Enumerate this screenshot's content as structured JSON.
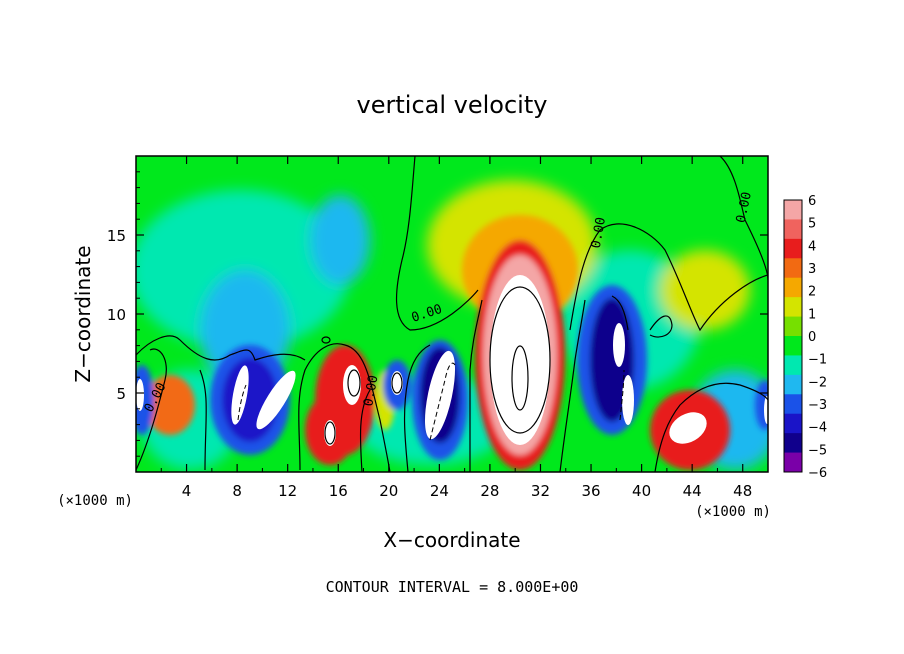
{
  "chart_data": {
    "type": "heatmap",
    "title": "vertical velocity",
    "xlabel": "X−coordinate",
    "ylabel": "Z−coordinate",
    "x_unit_left": "(×1000 m)",
    "x_unit_right": "(×1000 m)",
    "footer": "CONTOUR INTERVAL = 8.000E+00",
    "xlim": [
      0,
      50
    ],
    "ylim": [
      0,
      20
    ],
    "x_ticks": [
      4,
      8,
      12,
      16,
      20,
      24,
      28,
      32,
      36,
      40,
      44,
      48
    ],
    "x_tick_labels": [
      "4",
      "8",
      "12",
      "16",
      "20",
      "24",
      "28",
      "32",
      "36",
      "40",
      "44",
      "48"
    ],
    "y_ticks": [
      5,
      10,
      15
    ],
    "y_tick_labels": [
      "5",
      "10",
      "15"
    ],
    "contour_labels": [
      {
        "text": "0.00",
        "x": 1.8,
        "z": 4.6,
        "angle": -62
      },
      {
        "text": "0.00",
        "x": 23.1,
        "z": 9.8,
        "angle": -18
      },
      {
        "text": "0.00",
        "x": 18.9,
        "z": 5.1,
        "angle": -80
      },
      {
        "text": "0.00",
        "x": 36.9,
        "z": 15.1,
        "angle": -80
      },
      {
        "text": "0.00",
        "x": 48.4,
        "z": 16.7,
        "angle": -78
      }
    ],
    "colorbar": {
      "levels": [
        6,
        5,
        4,
        3,
        2,
        1,
        0,
        -1,
        -2,
        -3,
        -4,
        -5,
        -6
      ],
      "labels": [
        "6",
        "5",
        "4",
        "3",
        "2",
        "1",
        "0",
        "−1",
        "−2",
        "−3",
        "−4",
        "−5",
        "−6"
      ],
      "colors": [
        "#f4a6a6",
        "#f0635e",
        "#e81d1d",
        "#f26a12",
        "#f5a800",
        "#d4e400",
        "#76e000",
        "#00e81c",
        "#00e8b0",
        "#1fb8f0",
        "#1a52e8",
        "#1a14c8",
        "#10008c",
        "#7a00a8"
      ]
    },
    "features": [
      {
        "kind": "updraft",
        "x": 30.0,
        "z": 7.0,
        "max_w": "> 6"
      },
      {
        "kind": "updraft",
        "x": 17.0,
        "z": 5.5,
        "max_w": "> 6"
      },
      {
        "kind": "updraft",
        "x": 15.0,
        "z": 2.5,
        "max_w": "> 6"
      },
      {
        "kind": "updraft",
        "x": 43.0,
        "z": 2.5,
        "max_w": "> 6"
      },
      {
        "kind": "updraft",
        "x": 1.8,
        "z": 4.0,
        "max_w": "4"
      },
      {
        "kind": "downdraft",
        "x": 9.0,
        "z": 5.0,
        "min_w": "< -6"
      },
      {
        "kind": "downdraft",
        "x": 24.5,
        "z": 5.0,
        "min_w": "< -6"
      },
      {
        "kind": "downdraft",
        "x": 37.5,
        "z": 6.0,
        "min_w": "< -6"
      },
      {
        "kind": "downdraft",
        "x": 20.5,
        "z": 5.5,
        "min_w": "< -6"
      }
    ]
  }
}
